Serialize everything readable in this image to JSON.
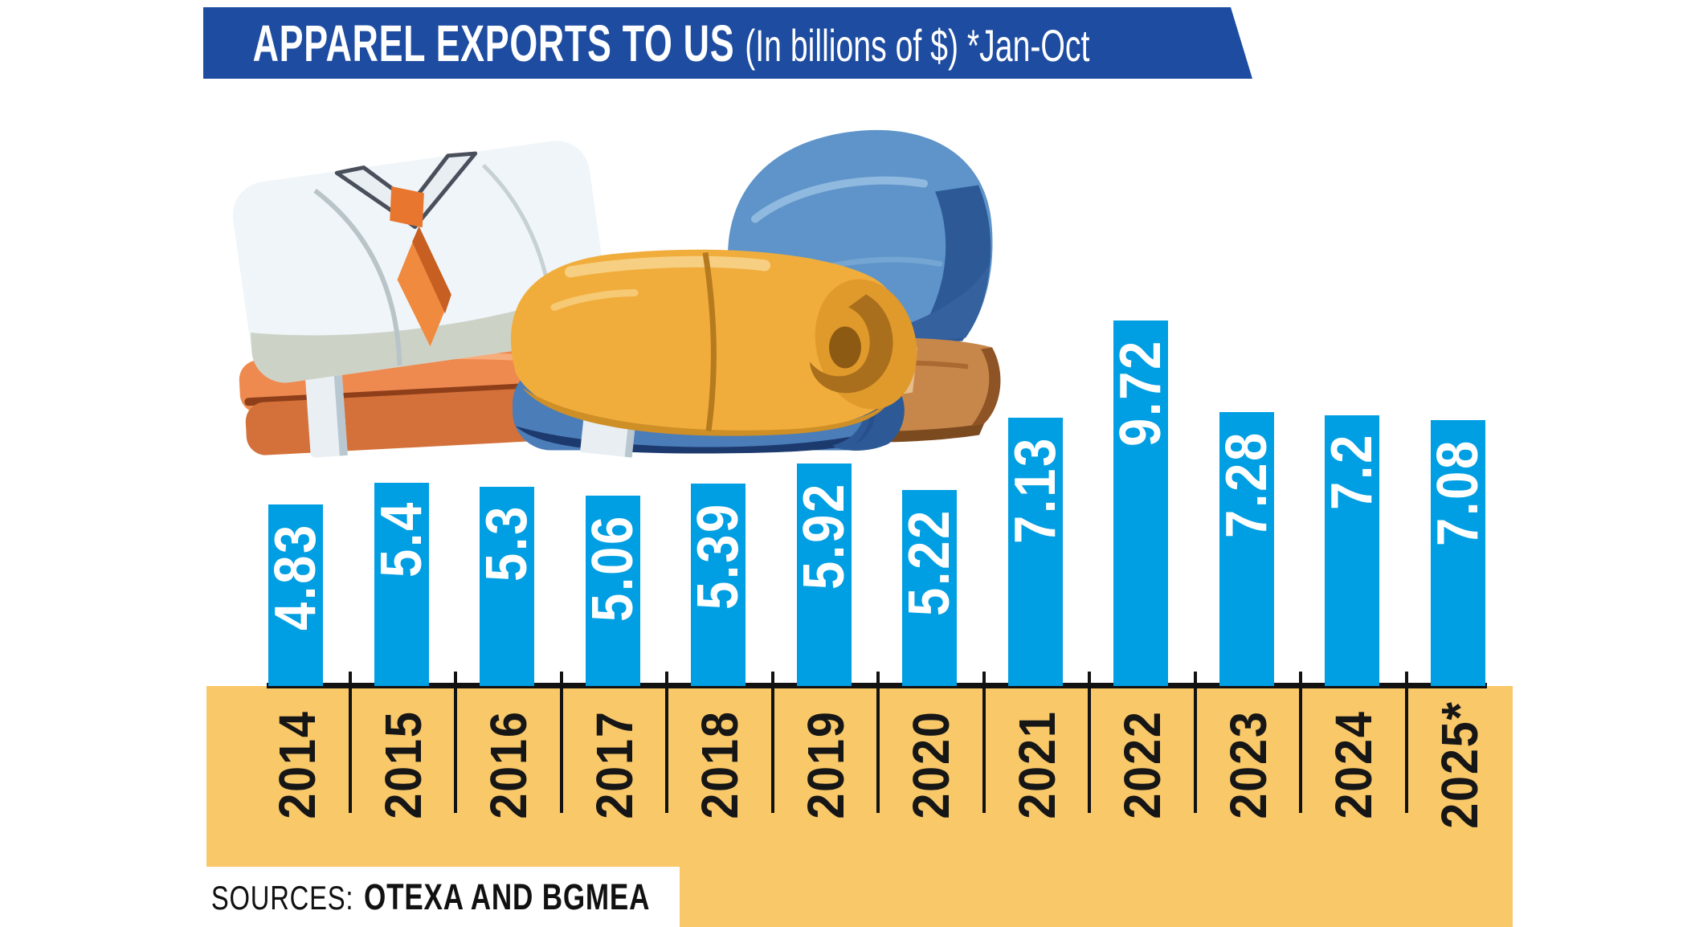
{
  "banner": {
    "title_bold": "APPAREL EXPORTS TO US",
    "title_light": "(In billions of $) *Jan-Oct"
  },
  "source": {
    "label": "SOURCES:",
    "names": "OTEXA AND BGMEA"
  },
  "chart_data": {
    "type": "bar",
    "title": "APPAREL EXPORTS TO US (In billions of $) *Jan-Oct",
    "unit": "billions of USD",
    "note": "*Jan-Oct",
    "categories": [
      "2014",
      "2015",
      "2016",
      "2017",
      "2018",
      "2019",
      "2020",
      "2021",
      "2022",
      "2023",
      "2024",
      "2025*"
    ],
    "values": [
      4.83,
      5.4,
      5.3,
      5.06,
      5.39,
      5.92,
      5.22,
      7.13,
      9.72,
      7.28,
      7.2,
      7.08
    ],
    "value_labels": [
      "4.83",
      "5.4",
      "5.3",
      "5.06",
      "5.39",
      "5.92",
      "5.22",
      "7.13",
      "9.72",
      "7.28",
      "7.2",
      "7.08"
    ],
    "ylim": [
      0,
      10
    ],
    "grid": false,
    "legend": false,
    "bar_color": "#009EE2",
    "value_label_color": "#FFFFFF",
    "category_label_color": "#161616",
    "axis_color": "#121212"
  },
  "colors": {
    "banner_blue": "#1E4CA1",
    "bar_blue": "#009EE2",
    "band_yellow": "#F9C869",
    "text_black": "#111111",
    "white": "#FFFFFF"
  },
  "illustration": {
    "name": "folded-apparel-stacks",
    "description": "Folded shirt with tie, rolled garments and stacked denim"
  }
}
